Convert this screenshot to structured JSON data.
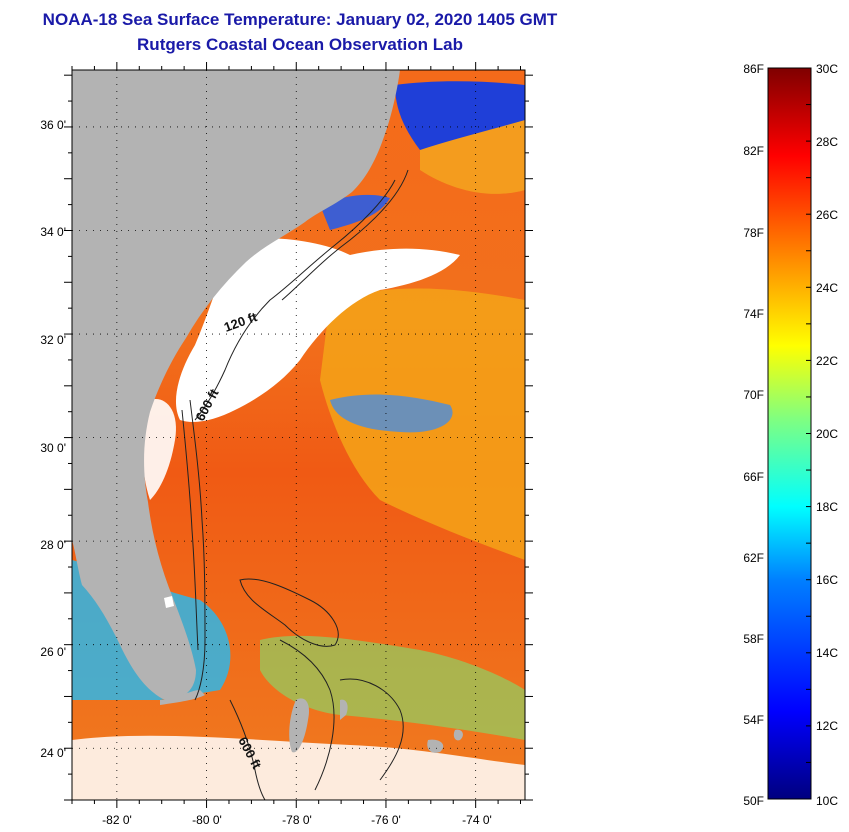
{
  "title": "NOAA-18 Sea Surface Temperature:  January 02, 2020 1405 GMT",
  "subtitle": "Rutgers Coastal Ocean Observation Lab",
  "map": {
    "lat_labels": [
      "36 0'",
      "34 0'",
      "32 0'",
      "30 0'",
      "28 0'",
      "26 0'",
      "24 0'"
    ],
    "lat_values": [
      36,
      34,
      32,
      30,
      28,
      26,
      24
    ],
    "lon_labels": [
      "-82 0'",
      "-80 0'",
      "-78 0'",
      "-76 0'",
      "-74 0'"
    ],
    "lon_values": [
      -82,
      -80,
      -78,
      -76,
      -74
    ],
    "lat_range": [
      23,
      37.1
    ],
    "lon_range": [
      -83,
      -72.9
    ],
    "contours": [
      "120 ft",
      "600 ft",
      "600 ft"
    ],
    "colors": {
      "land": "#b3b3b3",
      "cloud": "#ffffff",
      "gulf_stream": "#f26a18",
      "ocean_warm": "#f7b318",
      "shelf_cold": "#2a4ee0"
    }
  },
  "colorbar": {
    "f_labels": [
      "86F",
      "82F",
      "78F",
      "74F",
      "70F",
      "66F",
      "62F",
      "58F",
      "54F",
      "50F"
    ],
    "c_labels": [
      "30C",
      "28C",
      "26C",
      "24C",
      "22C",
      "20C",
      "18C",
      "16C",
      "14C",
      "12C",
      "10C"
    ],
    "min_c": 10,
    "max_c": 30,
    "colors": [
      "#00007f",
      "#0000ff",
      "#0080ff",
      "#00ffff",
      "#80ff80",
      "#ffff00",
      "#ff8000",
      "#ff0000",
      "#7f0000"
    ]
  }
}
